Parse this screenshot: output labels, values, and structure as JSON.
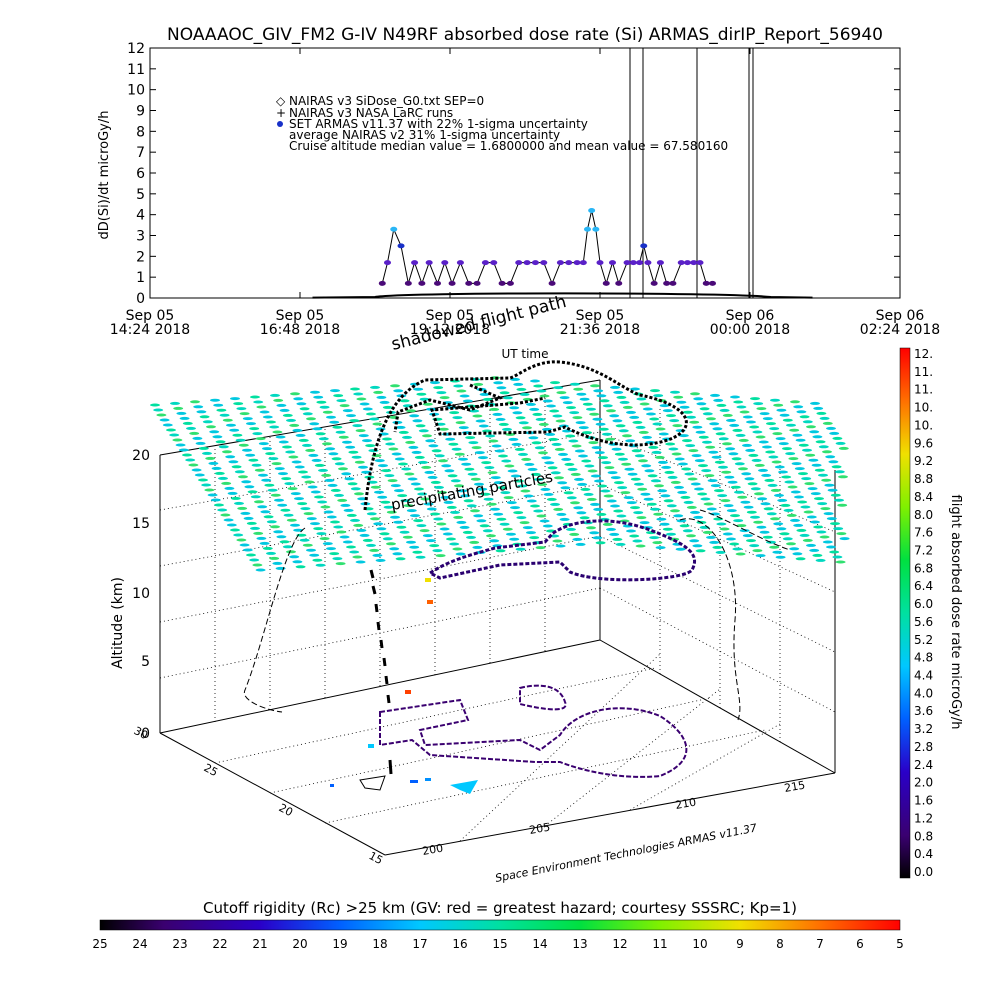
{
  "title": "NOAAAOC_GIV_FM2 G-IV    N49RF  absorbed dose rate (Si) ARMAS_dirIP_Report_56940",
  "chart_data": [
    {
      "type": "line",
      "ylabel": "dD(Si)/dt microGy/h",
      "xlabel": "UT time",
      "ylim": [
        0,
        12
      ],
      "yticks": [
        "0",
        "1",
        "2",
        "3",
        "4",
        "5",
        "6",
        "7",
        "8",
        "9",
        "10",
        "11",
        "12"
      ],
      "xticks": [
        {
          "day": "Sep 05",
          "time": "14:24 2018"
        },
        {
          "day": "Sep 05",
          "time": "16:48 2018"
        },
        {
          "day": "Sep 05",
          "time": "19:12 2018"
        },
        {
          "day": "Sep 05",
          "time": "21:36 2018"
        },
        {
          "day": "Sep 06",
          "time": "00:00 2018"
        },
        {
          "day": "Sep 06",
          "time": "02:24 2018"
        }
      ],
      "legend": [
        {
          "symbol": "◇",
          "text": "NAIRAS v3 SiDose_G0.txt SEP=0"
        },
        {
          "symbol": "+",
          "text": "NAIRAS v3 NASA LaRC runs"
        },
        {
          "symbol": "●",
          "text": "SET ARMAS v11.37 with 22% 1-sigma uncertainty"
        },
        {
          "symbol": "",
          "text": "average NAIRAS v2 31% 1-sigma uncertainty"
        },
        {
          "symbol": "",
          "text": "Cruise altitude median value = 1.6800000 and mean value = 67.580160"
        }
      ],
      "series": [
        {
          "values": [
            {
              "t": "18:07",
              "v": 0.7
            },
            {
              "t": "18:12",
              "v": 1.7
            },
            {
              "t": "18:18",
              "v": 3.3
            },
            {
              "t": "18:25",
              "v": 2.5
            },
            {
              "t": "18:32",
              "v": 0.7
            },
            {
              "t": "18:38",
              "v": 1.7
            },
            {
              "t": "18:45",
              "v": 0.7
            },
            {
              "t": "18:52",
              "v": 1.7
            },
            {
              "t": "19:00",
              "v": 0.7
            },
            {
              "t": "19:07",
              "v": 1.7
            },
            {
              "t": "19:14",
              "v": 0.7
            },
            {
              "t": "19:22",
              "v": 1.7
            },
            {
              "t": "19:30",
              "v": 0.7
            },
            {
              "t": "19:38",
              "v": 0.7
            },
            {
              "t": "19:46",
              "v": 1.7
            },
            {
              "t": "19:54",
              "v": 1.7
            },
            {
              "t": "20:02",
              "v": 0.7
            },
            {
              "t": "20:10",
              "v": 0.7
            },
            {
              "t": "20:18",
              "v": 1.7
            },
            {
              "t": "20:26",
              "v": 1.7
            },
            {
              "t": "20:34",
              "v": 1.7
            },
            {
              "t": "20:42",
              "v": 1.7
            },
            {
              "t": "20:50",
              "v": 0.7
            },
            {
              "t": "20:58",
              "v": 1.7
            },
            {
              "t": "21:06",
              "v": 1.7
            },
            {
              "t": "21:14",
              "v": 1.7
            },
            {
              "t": "21:20",
              "v": 1.7
            },
            {
              "t": "21:24",
              "v": 3.3
            },
            {
              "t": "21:28",
              "v": 4.2
            },
            {
              "t": "21:32",
              "v": 3.3
            },
            {
              "t": "21:36",
              "v": 1.7
            },
            {
              "t": "21:42",
              "v": 0.7
            },
            {
              "t": "21:48",
              "v": 1.7
            },
            {
              "t": "21:54",
              "v": 0.7
            },
            {
              "t": "22:02",
              "v": 1.7
            },
            {
              "t": "22:08",
              "v": 1.7
            },
            {
              "t": "22:14",
              "v": 1.7
            },
            {
              "t": "22:18",
              "v": 2.5
            },
            {
              "t": "22:22",
              "v": 1.7
            },
            {
              "t": "22:28",
              "v": 0.7
            },
            {
              "t": "22:34",
              "v": 1.7
            },
            {
              "t": "22:40",
              "v": 0.7
            },
            {
              "t": "22:46",
              "v": 0.7
            },
            {
              "t": "22:54",
              "v": 1.7
            },
            {
              "t": "23:00",
              "v": 1.7
            },
            {
              "t": "23:06",
              "v": 1.7
            },
            {
              "t": "23:12",
              "v": 1.7
            },
            {
              "t": "23:18",
              "v": 0.7
            },
            {
              "t": "23:24",
              "v": 0.7
            }
          ]
        }
      ],
      "naira_baseline": {
        "start": "17:00",
        "end": "01:00",
        "value": 0.05
      }
    },
    {
      "type": "scatter",
      "zlabel": "Altitude (km)",
      "zticks": [
        "0",
        "5",
        "10",
        "15",
        "20"
      ],
      "yticks_lat": [
        "15",
        "20",
        "25",
        "30"
      ],
      "xticks_lon": [
        "200",
        "205",
        "210",
        "215"
      ],
      "annotations": [
        "shadowed flight path",
        "precipitating particles",
        "Space Environment Technologies ARMAS v11.37"
      ],
      "zlim": [
        0,
        20
      ]
    }
  ],
  "colorbar_right": {
    "label": "flight absorbed dose rate microGy/h",
    "ticks": [
      "12.",
      "11.",
      "11.",
      "10.",
      "10.",
      "9.6",
      "9.2",
      "8.8",
      "8.4",
      "8.0",
      "7.6",
      "7.2",
      "6.8",
      "6.4",
      "6.0",
      "5.6",
      "5.2",
      "4.8",
      "4.4",
      "4.0",
      "3.6",
      "3.2",
      "2.8",
      "2.4",
      "2.0",
      "1.6",
      "1.2",
      "0.8",
      "0.4",
      "0.0"
    ]
  },
  "colorbar_bottom": {
    "label": "Cutoff rigidity (Rc) >25 km (GV: red = greatest hazard; courtesy SSSRC; Kp=1)",
    "ticks": [
      "25",
      "24",
      "23",
      "22",
      "21",
      "20",
      "19",
      "18",
      "17",
      "16",
      "15",
      "14",
      "13",
      "12",
      "11",
      "10",
      "9",
      "8",
      "7",
      "6",
      "5"
    ]
  }
}
